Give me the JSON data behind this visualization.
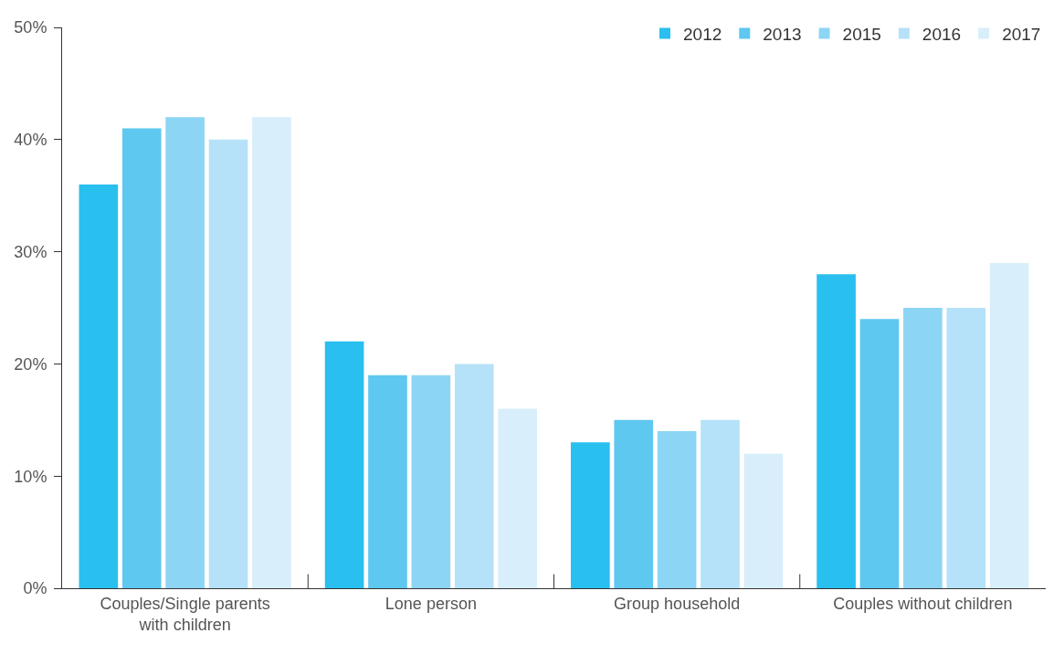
{
  "chart_data": {
    "type": "bar",
    "categories": [
      "Couples/Single parents with children",
      "Lone person",
      "Group household",
      "Couples without children"
    ],
    "series": [
      {
        "name": "2012",
        "color": "#29bfef",
        "values": [
          36,
          22,
          13,
          28
        ]
      },
      {
        "name": "2013",
        "color": "#5ec8f0",
        "values": [
          41,
          19,
          15,
          24
        ]
      },
      {
        "name": "2015",
        "color": "#8dd5f4",
        "values": [
          42,
          19,
          14,
          25
        ]
      },
      {
        "name": "2016",
        "color": "#b5e2f8",
        "values": [
          40,
          20,
          15,
          25
        ]
      },
      {
        "name": "2017",
        "color": "#d8eefa",
        "values": [
          42,
          16,
          12,
          29
        ]
      }
    ],
    "ylim": [
      0,
      50
    ],
    "yticks": [
      {
        "value": 0,
        "label": "0%"
      },
      {
        "value": 10,
        "label": "10%"
      },
      {
        "value": 20,
        "label": "20%"
      },
      {
        "value": 30,
        "label": "30%"
      },
      {
        "value": 40,
        "label": "40%"
      },
      {
        "value": 50,
        "label": "50%"
      }
    ],
    "legend": "top right"
  }
}
